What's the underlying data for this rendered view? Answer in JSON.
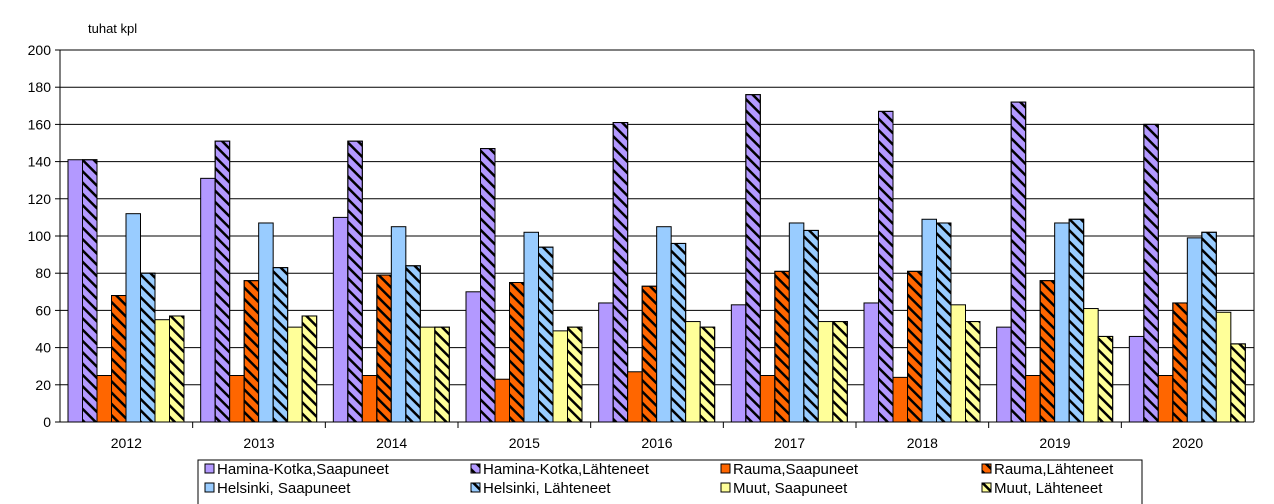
{
  "chart_data": {
    "type": "bar",
    "title": "",
    "xlabel": "",
    "ylabel": "tuhat kpl",
    "ylim": [
      0,
      200
    ],
    "yticks": [
      0,
      20,
      40,
      60,
      80,
      100,
      120,
      140,
      160,
      180,
      200
    ],
    "grid": true,
    "legend_position": "bottom",
    "categories": [
      "2012",
      "2013",
      "2014",
      "2015",
      "2016",
      "2017",
      "2018",
      "2019",
      "2020"
    ],
    "series": [
      {
        "name": "Hamina-Kotka,Saapuneet",
        "color": "#b399ff",
        "hatched": false,
        "values": [
          141,
          131,
          110,
          70,
          64,
          63,
          64,
          51,
          46
        ]
      },
      {
        "name": "Hamina-Kotka,Lähteneet",
        "color": "#b399ff",
        "hatched": true,
        "values": [
          141,
          151,
          151,
          147,
          161,
          176,
          167,
          172,
          160
        ]
      },
      {
        "name": "Rauma,Saapuneet",
        "color": "#ff6600",
        "hatched": false,
        "values": [
          25,
          25,
          25,
          23,
          27,
          25,
          24,
          25,
          25
        ]
      },
      {
        "name": "Rauma,Lähteneet",
        "color": "#ff6600",
        "hatched": true,
        "values": [
          68,
          76,
          79,
          75,
          73,
          81,
          81,
          76,
          64
        ]
      },
      {
        "name": "Helsinki, Saapuneet",
        "color": "#99ccff",
        "hatched": false,
        "values": [
          112,
          107,
          105,
          102,
          105,
          107,
          109,
          107,
          99
        ]
      },
      {
        "name": "Helsinki, Lähteneet",
        "color": "#99ccff",
        "hatched": true,
        "values": [
          80,
          83,
          84,
          94,
          96,
          103,
          107,
          109,
          102
        ]
      },
      {
        "name": "Muut, Saapuneet",
        "color": "#ffff99",
        "hatched": false,
        "values": [
          55,
          51,
          51,
          49,
          54,
          54,
          63,
          61,
          59
        ]
      },
      {
        "name": "Muut, Lähteneet",
        "color": "#ffff99",
        "hatched": true,
        "values": [
          57,
          57,
          51,
          51,
          51,
          54,
          54,
          46,
          42
        ]
      }
    ]
  }
}
